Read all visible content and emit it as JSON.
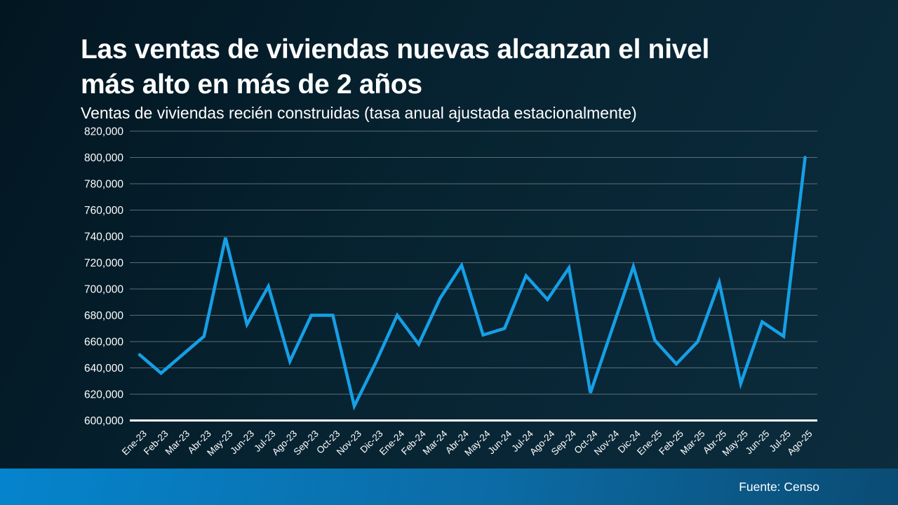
{
  "colors": {
    "bg_a": "#021621",
    "bg_b": "#072331",
    "bg_c": "#0c2d3e",
    "line": "#169fe6",
    "grid": "#6b7a82",
    "axis": "#ffffff",
    "text": "#ffffff",
    "footer_a": "#0584cd",
    "footer_b": "#0c6ba5",
    "footer_c": "#0a4c74"
  },
  "chart_data": {
    "type": "line",
    "title": "Las ventas de viviendas nuevas alcanzan el nivel más alto en más de 2 años",
    "title_lines": [
      "Las ventas de viviendas nuevas alcanzan el nivel",
      "más alto en más de 2 años"
    ],
    "subtitle": "Ventas de viviendas recién construidas (tasa anual ajustada estacionalmente)",
    "source": "Fuente: Censo",
    "categories": [
      "Ene-23",
      "Feb-23",
      "Mar-23",
      "Abr-23",
      "May-23",
      "Jun-23",
      "Jul-23",
      "Ago-23",
      "Sep-23",
      "Oct-23",
      "Nov-23",
      "Dic-23",
      "Ene-24",
      "Feb-24",
      "Mar-24",
      "Abr-24",
      "May-24",
      "Jun-24",
      "Jul-24",
      "Ago-24",
      "Sep-24",
      "Oct-24",
      "Nov-24",
      "Dic-24",
      "Ene-25",
      "Feb-25",
      "Mar-25",
      "Abr-25",
      "May-25",
      "Jun-25",
      "Jul-25",
      "Ago-25"
    ],
    "values": [
      650000,
      636000,
      650000,
      664000,
      739000,
      673000,
      702000,
      645000,
      680000,
      680000,
      611000,
      644000,
      680000,
      658000,
      693000,
      718000,
      665000,
      670000,
      710000,
      692000,
      716000,
      621000,
      669000,
      717000,
      661000,
      643000,
      660000,
      705000,
      628000,
      675000,
      664000,
      800000
    ],
    "xlabel": "",
    "ylabel": "",
    "ylim": [
      600000,
      820000
    ],
    "grid": true,
    "legend": false,
    "yticks": [
      {
        "value": 820000,
        "label": "820,000"
      },
      {
        "value": 800000,
        "label": "800,000"
      },
      {
        "value": 780000,
        "label": "780,000"
      },
      {
        "value": 760000,
        "label": "760,000"
      },
      {
        "value": 740000,
        "label": "740,000"
      },
      {
        "value": 720000,
        "label": "720,000"
      },
      {
        "value": 700000,
        "label": "700,000"
      },
      {
        "value": 680000,
        "label": "680,000"
      },
      {
        "value": 660000,
        "label": "660,000"
      },
      {
        "value": 640000,
        "label": "640,000"
      },
      {
        "value": 620000,
        "label": "620,000"
      },
      {
        "value": 600000,
        "label": "600,000"
      }
    ]
  }
}
